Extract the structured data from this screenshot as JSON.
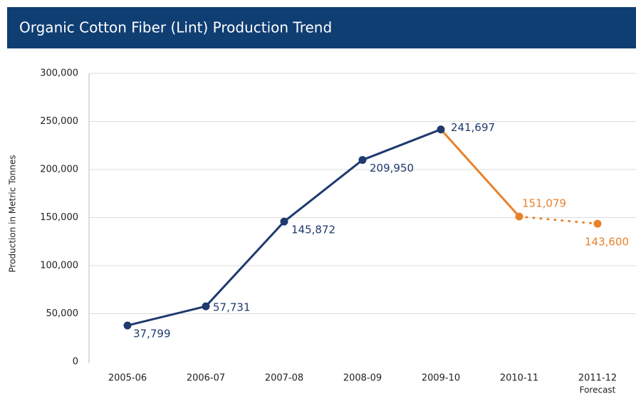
{
  "chart_data": {
    "type": "line",
    "title": "Organic Cotton Fiber (Lint) Production Trend",
    "y_label": "Production in Metric Tonnes",
    "categories": [
      "2005-06",
      "2006-07",
      "2007-08",
      "2008-09",
      "2009-10",
      "2010-11",
      "2011-12"
    ],
    "category_sublabels": [
      null,
      null,
      null,
      null,
      null,
      null,
      "Forecast"
    ],
    "values": [
      37799,
      57731,
      145872,
      209950,
      241697,
      151079,
      143600
    ],
    "value_labels": [
      "37,799",
      "57,731",
      "145,872",
      "209,950",
      "241,697",
      "151,079",
      "143,600"
    ],
    "colors": [
      "#1e3a6e",
      "#1e3a6e",
      "#1e3a6e",
      "#1e3a6e",
      "#1e3a6e",
      "#e8822a",
      "#e8822a"
    ],
    "line_styles": [
      "solid",
      "solid",
      "solid",
      "solid",
      "solid",
      "solid",
      "dotted"
    ],
    "ylim": [
      0,
      300000
    ],
    "yticks": [
      0,
      {
        "value": 50000,
        "label": "50,000"
      },
      {
        "value": 100000,
        "label": "100,000"
      },
      {
        "value": 150000,
        "label": "150,000"
      },
      {
        "value": 200000,
        "label": "200,000"
      },
      {
        "value": 250000,
        "label": "250,000"
      },
      {
        "value": 300000,
        "label": "300,000"
      }
    ],
    "grid": true
  }
}
